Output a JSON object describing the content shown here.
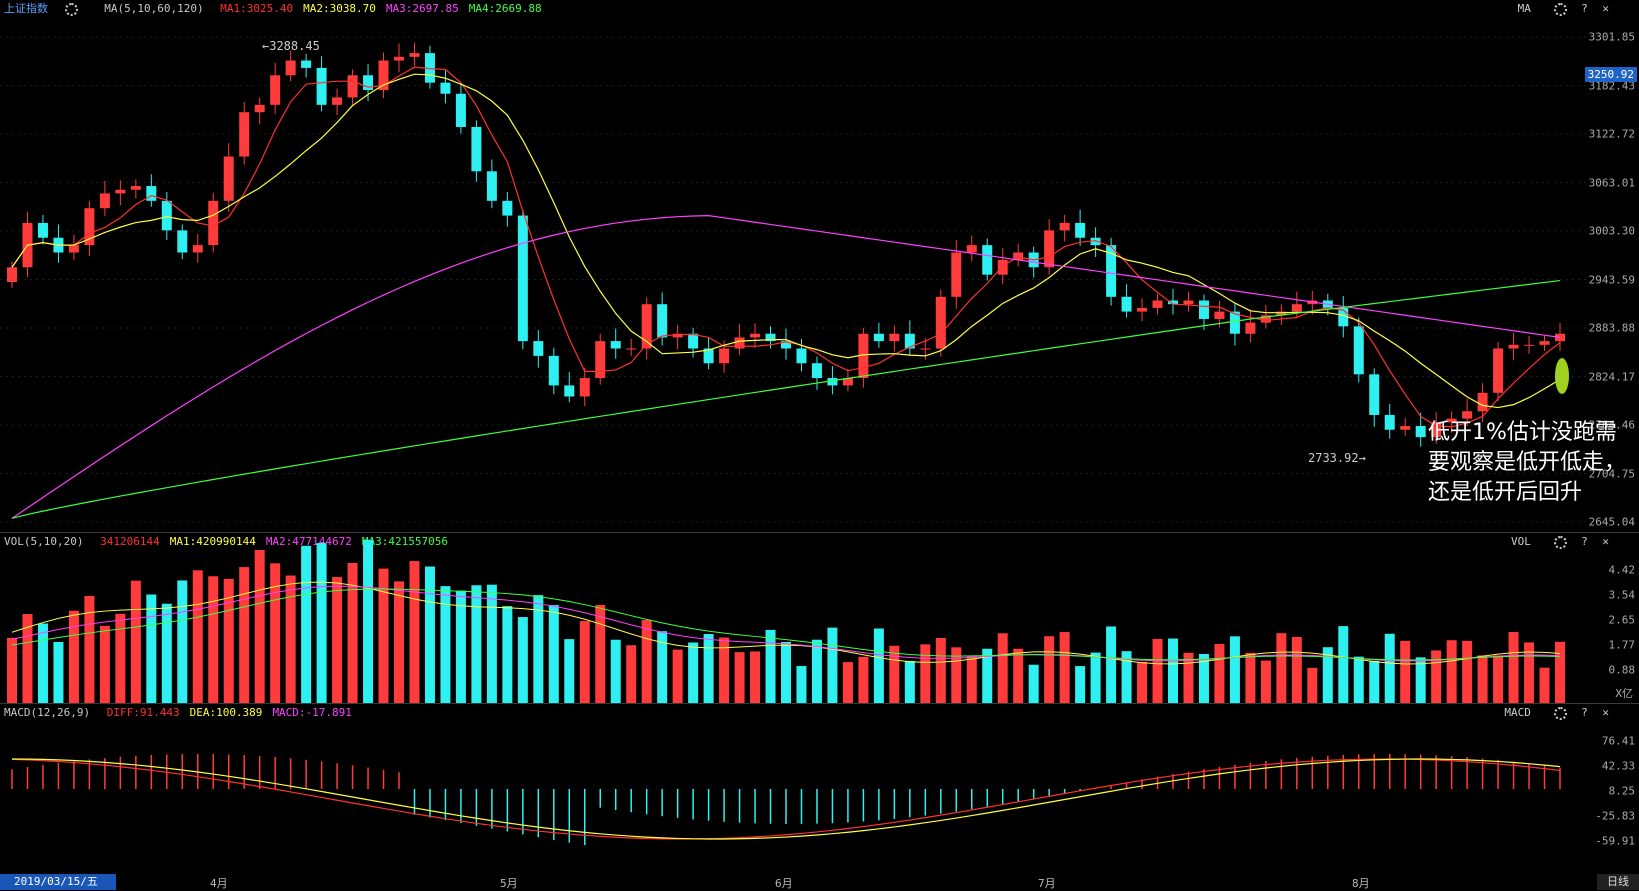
{
  "price_panel": {
    "index_name": "上证指数",
    "ma_title": "MA(5,10,60,120)",
    "ma_values": [
      {
        "label": "MA1:3025.40",
        "color": "#ff3030"
      },
      {
        "label": "MA2:3038.70",
        "color": "#ffff40"
      },
      {
        "label": "MA3:2697.85",
        "color": "#ff40ff"
      },
      {
        "label": "MA4:2669.88",
        "color": "#40ff40"
      }
    ],
    "controls": {
      "name": "MA",
      "help": "?",
      "close": "✕"
    },
    "axis_ticks": [
      "3301.85",
      "3182.43",
      "3122.72",
      "3063.01",
      "3003.30",
      "2943.59",
      "2883.88",
      "2824.17",
      "2764.46",
      "2704.75",
      "2645.04"
    ],
    "current_price": "3250.92",
    "high_label": "3288.45",
    "low_label": "2733.92",
    "annotation": "低开1%估计没跑需要观察是低开低走，还是低开后回升"
  },
  "volume_panel": {
    "title": "VOL(5,10,20)",
    "values": [
      {
        "label": "341206144",
        "color": "#ff3030"
      },
      {
        "label": "MA1:420990144",
        "color": "#ffff40"
      },
      {
        "label": "MA2:477144672",
        "color": "#ff40ff"
      },
      {
        "label": "MA3:421557056",
        "color": "#40ff40"
      }
    ],
    "controls": {
      "name": "VOL",
      "help": "?",
      "close": "✕"
    },
    "axis_ticks": [
      "4.42",
      "3.54",
      "2.65",
      "1.77",
      "0.88"
    ],
    "unit": "X亿"
  },
  "macd_panel": {
    "title": "MACD(12,26,9)",
    "values": [
      {
        "label": "DIFF:91.443",
        "color": "#ff3030"
      },
      {
        "label": "DEA:100.389",
        "color": "#ffff40"
      },
      {
        "label": "MACD:-17.891",
        "color": "#ff40ff"
      }
    ],
    "controls": {
      "name": "MACD",
      "help": "?",
      "close": "✕"
    },
    "axis_ticks": [
      "76.41",
      "42.33",
      "8.25",
      "-25.83",
      "-59.91"
    ]
  },
  "date_bar": {
    "current_date": "2019/03/15/五",
    "months": [
      "4月",
      "5月",
      "6月",
      "7月",
      "8月"
    ],
    "period": "日线"
  },
  "chart_data": {
    "type": "candlestick",
    "title": "上证指数",
    "ylim": [
      2645.04,
      3301.85
    ],
    "closes": [
      2990,
      3050,
      3030,
      3010,
      3020,
      3070,
      3090,
      3095,
      3100,
      3080,
      3040,
      3010,
      3020,
      3080,
      3140,
      3200,
      3210,
      3250,
      3270,
      3260,
      3210,
      3220,
      3250,
      3230,
      3270,
      3275,
      3280,
      3240,
      3225,
      3180,
      3120,
      3080,
      3060,
      2890,
      2870,
      2830,
      2815,
      2840,
      2890,
      2880,
      2880,
      2940,
      2895,
      2900,
      2880,
      2860,
      2880,
      2895,
      2900,
      2890,
      2880,
      2860,
      2840,
      2830,
      2840,
      2900,
      2890,
      2900,
      2880,
      2880,
      2950,
      3010,
      3020,
      2980,
      3000,
      3010,
      2990,
      3040,
      3050,
      3030,
      3020,
      2950,
      2930,
      2935,
      2945,
      2940,
      2945,
      2920,
      2930,
      2900,
      2915,
      2925,
      2930,
      2940,
      2945,
      2935,
      2910,
      2845,
      2790,
      2770,
      2775,
      2760,
      2780,
      2785,
      2795,
      2820,
      2880,
      2885,
      2885,
      2890,
      2900
    ],
    "volume_unit": "亿",
    "volumes_lastN_note_free": true
  }
}
